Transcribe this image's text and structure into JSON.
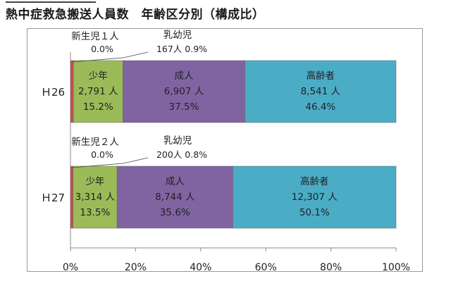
{
  "title": "熱中症救急搬送人員数　年齢区分別（構成比）",
  "chart_data": {
    "type": "bar",
    "orientation": "horizontal",
    "stacked": true,
    "categories": [
      "H26",
      "H27"
    ],
    "category_labels": [
      "Ｈ26",
      "Ｈ27"
    ],
    "xlim": [
      0,
      100
    ],
    "x_ticks": [
      "0%",
      "20%",
      "40%",
      "60%",
      "80%",
      "100%"
    ],
    "series": [
      {
        "name": "新生児",
        "color": "#c0504d",
        "values": [
          0.0,
          0.0
        ],
        "labels": [
          [
            "新生児１人",
            "0.0%"
          ],
          [
            "新生児２人",
            "0.0%"
          ]
        ]
      },
      {
        "name": "乳幼児",
        "color": "#c0504d",
        "values": [
          0.9,
          0.8
        ],
        "labels": [
          [
            "乳幼児",
            "167人 0.9%"
          ],
          [
            "乳幼児",
            "200人 0.8%"
          ]
        ]
      },
      {
        "name": "少年",
        "color": "#9bbb59",
        "values": [
          15.2,
          13.5
        ],
        "labels": [
          [
            "少年",
            "2,791 人",
            "15.2%"
          ],
          [
            "少年",
            "3,314 人",
            "13.5%"
          ]
        ]
      },
      {
        "name": "成人",
        "color": "#8064a2",
        "values": [
          37.5,
          35.6
        ],
        "labels": [
          [
            "成人",
            "6,907 人",
            "37.5%"
          ],
          [
            "成人",
            "8,744 人",
            "35.6%"
          ]
        ]
      },
      {
        "name": "高齢者",
        "color": "#4bacc6",
        "values": [
          46.4,
          50.1
        ],
        "labels": [
          [
            "高齢者",
            "8,541 人",
            "46.4%"
          ],
          [
            "高齢者",
            "12,307 人",
            "50.1%"
          ]
        ]
      }
    ]
  }
}
